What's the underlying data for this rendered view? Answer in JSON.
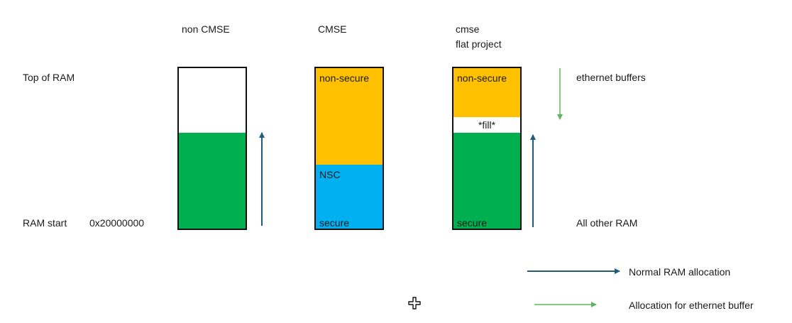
{
  "headers": {
    "non_cmse": "non CMSE",
    "cmse": "CMSE",
    "flat_line1": "cmse",
    "flat_line2": "flat project"
  },
  "row_labels": {
    "top": "Top of RAM",
    "start": "RAM start",
    "start_address": "0x20000000"
  },
  "columns": {
    "flat": {
      "non_secure": "non-secure",
      "fill": "*fill*",
      "secure": "secure",
      "right_top": "ethernet buffers",
      "right_bottom": "All other RAM"
    },
    "cmse": {
      "non_secure": "non-secure",
      "nsc": "NSC",
      "secure": "secure"
    }
  },
  "legend": {
    "normal": "Normal RAM allocation",
    "ethernet": "Allocation for ethernet buffer"
  },
  "colors": {
    "green": "#00b050",
    "orange": "#ffc000",
    "blue": "#00b0f0",
    "dark_arrow": "#1f5b7a",
    "green_arrow": "#5cb85c",
    "border": "#111111"
  },
  "cursor_icon": "move-cross-icon"
}
